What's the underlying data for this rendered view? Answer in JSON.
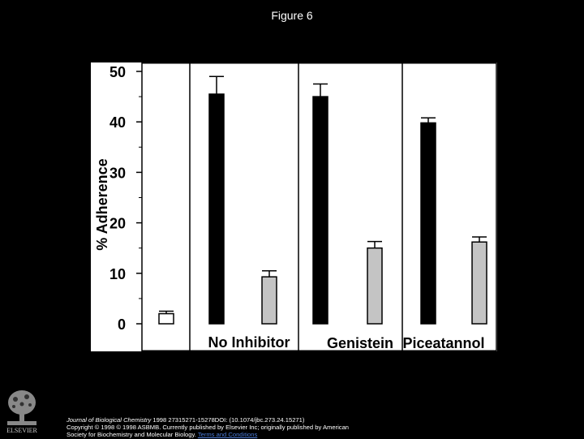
{
  "title": "Figure 6",
  "chart_data": {
    "type": "bar",
    "ylabel": "% Adherence",
    "ylim": [
      0,
      50
    ],
    "yticks": [
      0,
      10,
      20,
      30,
      40,
      50
    ],
    "bars": [
      {
        "value": 2.0,
        "error": 0.5,
        "fill": "white"
      },
      {
        "value": 45.5,
        "error": 3.5,
        "fill": "black"
      },
      {
        "value": 9.3,
        "error": 1.2,
        "fill": "gray"
      },
      {
        "value": 45.0,
        "error": 2.5,
        "fill": "black"
      },
      {
        "value": 15.0,
        "error": 1.3,
        "fill": "gray"
      },
      {
        "value": 39.8,
        "error": 1.0,
        "fill": "black"
      },
      {
        "value": 16.2,
        "error": 1.0,
        "fill": "gray"
      }
    ],
    "group_labels": [
      "No Inhibitor",
      "Genistein",
      "Piceatannol"
    ],
    "grid": false
  },
  "colors": {
    "black_bar": "#000000",
    "gray_bar": "#c4c4c4",
    "open_bar": "#ffffff"
  },
  "logo_icon": "elsevier-tree-logo",
  "footer": {
    "journal": "Journal of Biological Chemistry",
    "line1_rest": " 1998 27315271-15278DOI: (10.1074/jbc.273.24.15271)",
    "line2": "Copyright © 1998 © 1998 ASBMB. Currently published by Elsevier Inc; originally published by American",
    "line3": "Society for Biochemistry and Molecular Biology.",
    "link": "Terms and Conditions",
    "logo_text": "ELSEVIER"
  }
}
